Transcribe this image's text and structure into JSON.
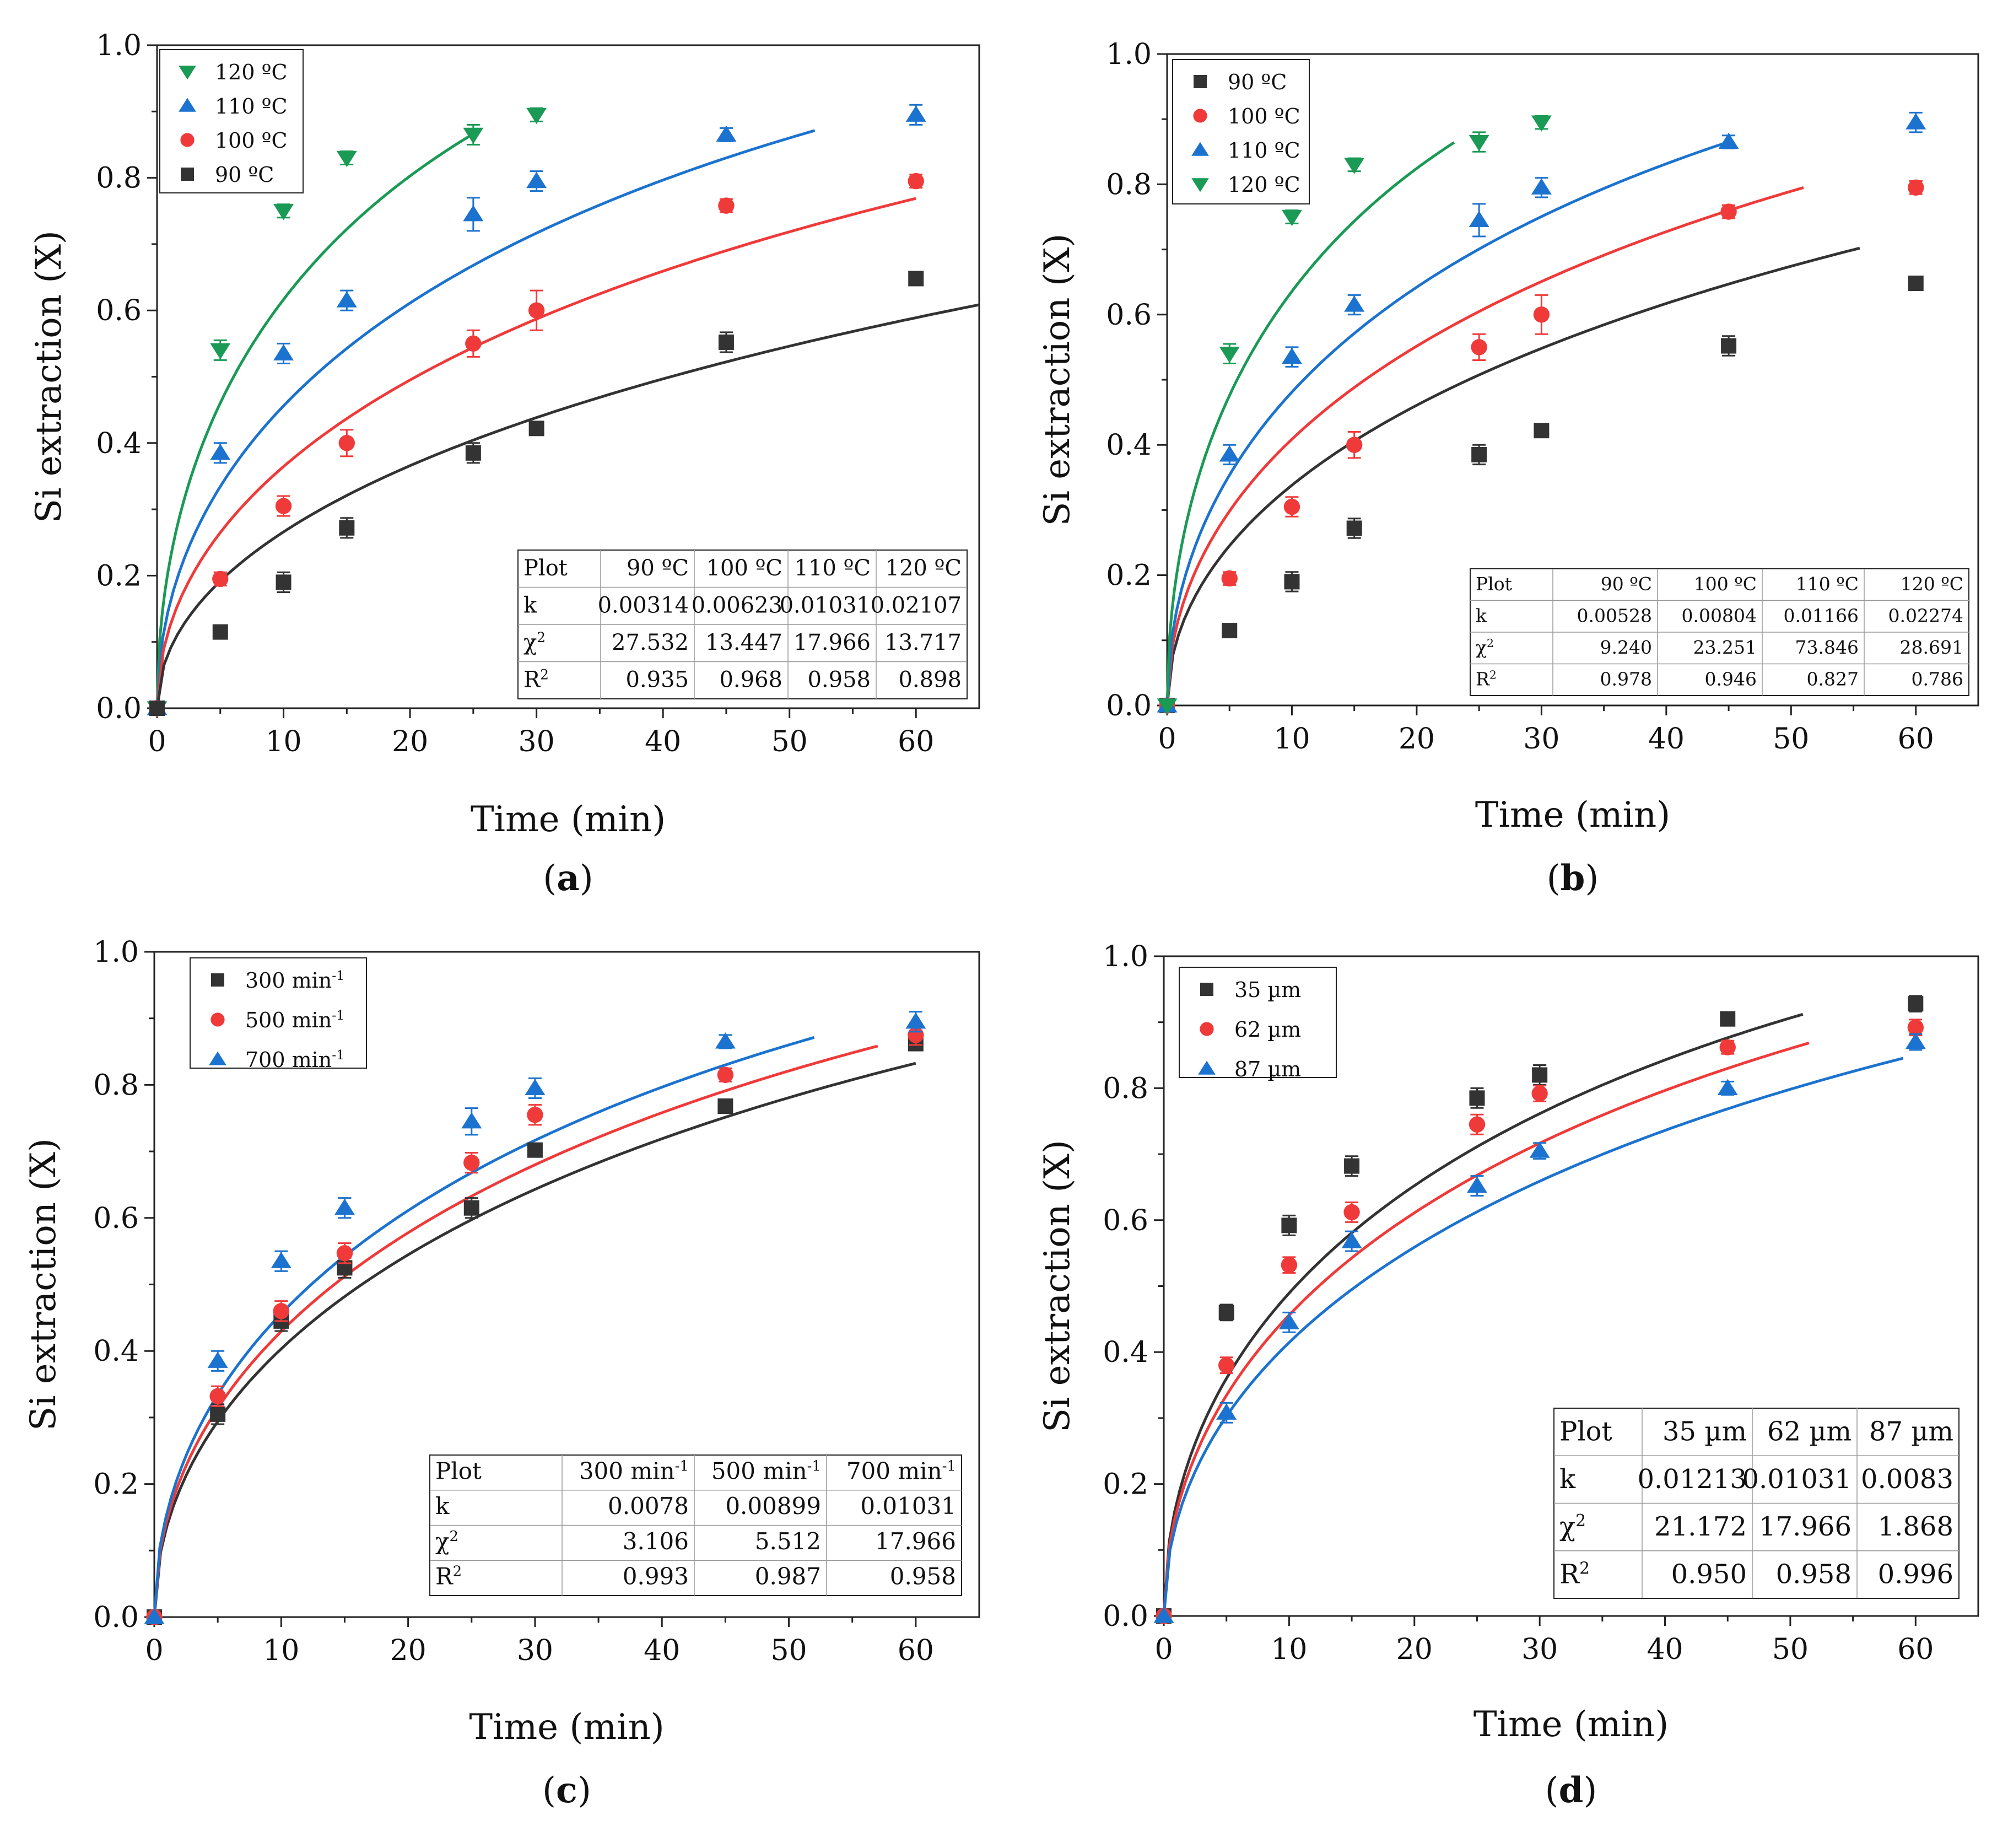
{
  "colors": {
    "black": "#333333",
    "red": "#f03a3a",
    "blue": "#1c73cf",
    "green": "#1a9a55"
  },
  "chart_data": [
    {
      "type": "scatter",
      "panel_label": "a",
      "xlabel": "Time (min)",
      "ylabel": "Si extraction (X)",
      "xlim": [
        0,
        65
      ],
      "ylim": [
        0,
        1.0
      ],
      "xticks": [
        "0",
        "10",
        "20",
        "30",
        "40",
        "50",
        "60"
      ],
      "yticks": [
        "0.0",
        "0.2",
        "0.4",
        "0.6",
        "0.8",
        "1.0"
      ],
      "legend_position": "top-left",
      "x": [
        0,
        5,
        10,
        15,
        25,
        30,
        45,
        60
      ],
      "series": [
        {
          "name": "120 ºC",
          "color": "#1a9a55",
          "marker": "triangle-down",
          "values": [
            0,
            0.54,
            0.75,
            0.83,
            0.865,
            0.895,
            null,
            null
          ],
          "errors": [
            0,
            0.015,
            0.01,
            0.01,
            0.015,
            0.01,
            null,
            null
          ],
          "fit": {
            "k": 0.02107,
            "end": 25.5
          }
        },
        {
          "name": "110 ºC",
          "color": "#1c73cf",
          "marker": "triangle-up",
          "values": [
            0,
            0.385,
            0.535,
            0.615,
            0.745,
            0.795,
            0.865,
            0.895
          ],
          "errors": [
            0,
            0.015,
            0.015,
            0.015,
            0.025,
            0.015,
            0.01,
            0.015
          ],
          "fit": {
            "k": 0.01031,
            "end": 52
          }
        },
        {
          "name": "100 ºC",
          "color": "#f03a3a",
          "marker": "circle",
          "values": [
            0,
            0.195,
            0.305,
            0.4,
            0.55,
            0.6,
            0.758,
            0.795
          ],
          "errors": [
            0,
            0.01,
            0.015,
            0.02,
            0.02,
            0.03,
            0.01,
            0.01
          ],
          "fit": {
            "k": 0.00623,
            "end": 60
          }
        },
        {
          "name": "90 ºC",
          "color": "#333333",
          "marker": "square",
          "values": [
            0,
            0.115,
            0.19,
            0.272,
            0.385,
            0.422,
            0.552,
            0.648
          ],
          "errors": [
            0,
            0.008,
            0.015,
            0.015,
            0.015,
            0.01,
            0.015,
            0.01
          ],
          "fit": {
            "k": 0.00314,
            "end": 65
          }
        }
      ],
      "table": {
        "headers": [
          "Plot",
          "90 ºC",
          "100 ºC",
          "110 ºC",
          "120 ºC"
        ],
        "rows": [
          [
            "k",
            "0.00314",
            "0.00623",
            "0.01031",
            "0.02107"
          ],
          [
            "χ2",
            "27.532",
            "13.447",
            "17.966",
            "13.717"
          ],
          [
            "R2",
            "0.935",
            "0.968",
            "0.958",
            "0.898"
          ]
        ]
      }
    },
    {
      "type": "scatter",
      "panel_label": "b",
      "xlabel": "Time (min)",
      "ylabel": "Si extraction (X)",
      "xlim": [
        0,
        65
      ],
      "ylim": [
        0,
        1.0
      ],
      "xticks": [
        "0",
        "10",
        "20",
        "30",
        "40",
        "50",
        "60"
      ],
      "yticks": [
        "0.0",
        "0.2",
        "0.4",
        "0.6",
        "0.8",
        "1.0"
      ],
      "legend_position": "top-left",
      "x": [
        0,
        5,
        10,
        15,
        25,
        30,
        45,
        60
      ],
      "series": [
        {
          "name": "90 ºC",
          "color": "#333333",
          "marker": "square",
          "values": [
            0,
            0.115,
            0.19,
            0.272,
            0.385,
            0.422,
            0.552,
            0.648
          ],
          "errors": [
            0,
            0.008,
            0.015,
            0.015,
            0.015,
            0.01,
            0.015,
            0.01
          ],
          "fit": {
            "k": 0.00528,
            "end": 55.5
          }
        },
        {
          "name": "100 ºC",
          "color": "#f03a3a",
          "marker": "circle",
          "values": [
            0,
            0.195,
            0.305,
            0.4,
            0.55,
            0.6,
            0.758,
            0.795
          ],
          "errors": [
            0,
            0.01,
            0.015,
            0.02,
            0.02,
            0.03,
            0.01,
            0.01
          ],
          "fit": {
            "k": 0.00804,
            "end": 51
          }
        },
        {
          "name": "110 ºC",
          "color": "#1c73cf",
          "marker": "triangle-up",
          "values": [
            0,
            0.385,
            0.535,
            0.615,
            0.745,
            0.795,
            0.865,
            0.895
          ],
          "errors": [
            0,
            0.015,
            0.015,
            0.015,
            0.025,
            0.015,
            0.01,
            0.015
          ],
          "fit": {
            "k": 0.01166,
            "end": 45
          }
        },
        {
          "name": "120 ºC",
          "color": "#1a9a55",
          "marker": "triangle-down",
          "values": [
            0,
            0.54,
            0.75,
            0.83,
            0.865,
            0.895,
            null,
            null
          ],
          "errors": [
            0,
            0.015,
            0.01,
            0.01,
            0.015,
            0.01,
            null,
            null
          ],
          "fit": {
            "k": 0.02274,
            "end": 23
          }
        }
      ],
      "table": {
        "headers": [
          "Plot",
          "90 ºC",
          "100 ºC",
          "110 ºC",
          "120 ºC"
        ],
        "rows": [
          [
            "k",
            "0.00528",
            "0.00804",
            "0.01166",
            "0.02274"
          ],
          [
            "χ2",
            "9.240",
            "23.251",
            "73.846",
            "28.691"
          ],
          [
            "R2",
            "0.978",
            "0.946",
            "0.827",
            "0.786"
          ]
        ]
      }
    },
    {
      "type": "scatter",
      "panel_label": "c",
      "xlabel": "Time (min)",
      "ylabel": "Si extraction (X)",
      "xlim": [
        0,
        65
      ],
      "ylim": [
        0,
        1.0
      ],
      "xticks": [
        "0",
        "10",
        "20",
        "30",
        "40",
        "50",
        "60"
      ],
      "yticks": [
        "0.0",
        "0.2",
        "0.4",
        "0.6",
        "0.8",
        "1.0"
      ],
      "legend_position": "top-left",
      "x": [
        0,
        5,
        10,
        15,
        25,
        30,
        45,
        60
      ],
      "series": [
        {
          "name": "300 min-1",
          "color": "#333333",
          "marker": "square",
          "values": [
            0,
            0.305,
            0.445,
            0.525,
            0.615,
            0.702,
            0.768,
            0.862
          ],
          "errors": [
            0,
            0.015,
            0.015,
            0.015,
            0.015,
            0.01,
            0.01,
            0.01
          ],
          "fit": {
            "k": 0.0078,
            "end": 60
          }
        },
        {
          "name": "500 min-1",
          "color": "#f03a3a",
          "marker": "circle",
          "values": [
            0,
            0.332,
            0.46,
            0.547,
            0.683,
            0.755,
            0.815,
            0.875
          ],
          "errors": [
            0,
            0.015,
            0.015,
            0.015,
            0.015,
            0.015,
            0.01,
            0.015
          ],
          "fit": {
            "k": 0.00899,
            "end": 57
          }
        },
        {
          "name": "700 min-1",
          "color": "#1c73cf",
          "marker": "triangle-up",
          "values": [
            0,
            0.385,
            0.535,
            0.615,
            0.745,
            0.795,
            0.865,
            0.895
          ],
          "errors": [
            0,
            0.015,
            0.015,
            0.015,
            0.02,
            0.015,
            0.01,
            0.015
          ],
          "fit": {
            "k": 0.01031,
            "end": 52
          }
        }
      ],
      "table": {
        "headers": [
          "Plot",
          "300 min-1",
          "500 min-1",
          "700 min-1"
        ],
        "rows": [
          [
            "k",
            "0.0078",
            "0.00899",
            "0.01031"
          ],
          [
            "χ2",
            "3.106",
            "5.512",
            "17.966"
          ],
          [
            "R2",
            "0.993",
            "0.987",
            "0.958"
          ]
        ]
      }
    },
    {
      "type": "scatter",
      "panel_label": "d",
      "xlabel": "Time (min)",
      "ylabel": "Si extraction (X)",
      "xlim": [
        0,
        65
      ],
      "ylim": [
        0,
        1.0
      ],
      "xticks": [
        "0",
        "10",
        "20",
        "30",
        "40",
        "50",
        "60"
      ],
      "yticks": [
        "0.0",
        "0.2",
        "0.4",
        "0.6",
        "0.8",
        "1.0"
      ],
      "legend_position": "top-left",
      "x": [
        0,
        5,
        10,
        15,
        25,
        30,
        45,
        60
      ],
      "series": [
        {
          "name": "35 µm",
          "color": "#333333",
          "marker": "square",
          "values": [
            0,
            0.46,
            0.592,
            0.682,
            0.785,
            0.82,
            0.905,
            0.928
          ],
          "errors": [
            0,
            0.012,
            0.015,
            0.015,
            0.015,
            0.015,
            0.01,
            0.012
          ],
          "fit": {
            "k": 0.01213,
            "end": 51
          }
        },
        {
          "name": "62 µm",
          "color": "#f03a3a",
          "marker": "circle",
          "values": [
            0,
            0.38,
            0.532,
            0.612,
            0.745,
            0.792,
            0.862,
            0.892
          ],
          "errors": [
            0,
            0.012,
            0.012,
            0.015,
            0.015,
            0.012,
            0.01,
            0.012
          ],
          "fit": {
            "k": 0.01031,
            "end": 51.5
          }
        },
        {
          "name": "87 µm",
          "color": "#1c73cf",
          "marker": "triangle-up",
          "values": [
            0,
            0.308,
            0.445,
            0.568,
            0.652,
            0.705,
            0.8,
            0.87
          ],
          "errors": [
            0,
            0.015,
            0.015,
            0.015,
            0.015,
            0.012,
            0.01,
            0.012
          ],
          "fit": {
            "k": 0.0083,
            "end": 59
          }
        }
      ],
      "table": {
        "headers": [
          "Plot",
          "35 µm",
          "62 µm",
          "87 µm"
        ],
        "rows": [
          [
            "k",
            "0.01213",
            "0.01031",
            "0.0083"
          ],
          [
            "χ2",
            "21.172",
            "17.966",
            "1.868"
          ],
          [
            "R2",
            "0.950",
            "0.958",
            "0.996"
          ]
        ]
      }
    }
  ]
}
